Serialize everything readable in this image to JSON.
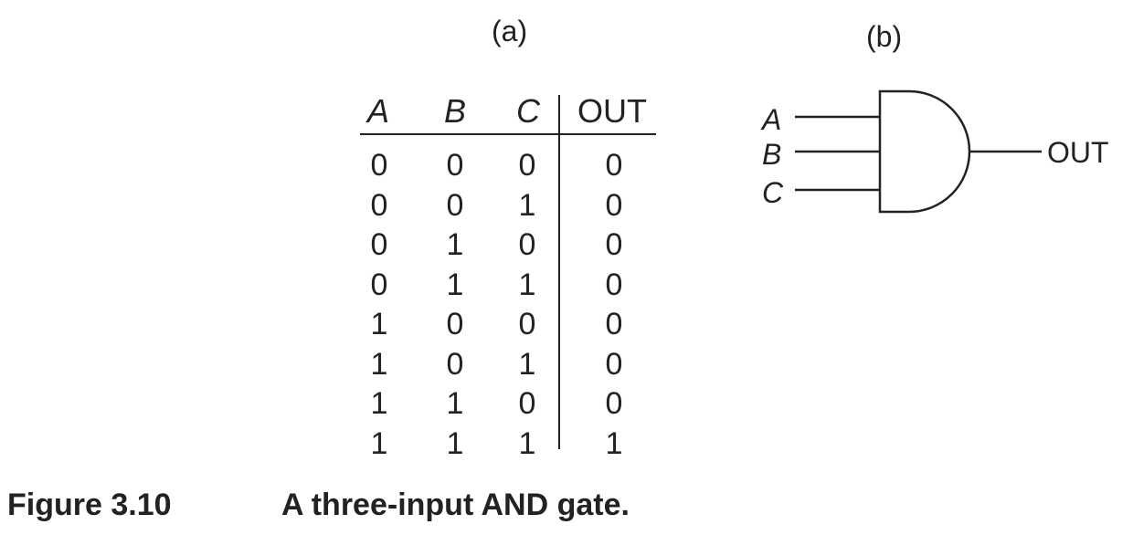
{
  "labels": {
    "a": "(a)",
    "b": "(b)"
  },
  "table": {
    "headers": [
      "A",
      "B",
      "C",
      "OUT"
    ],
    "rows": [
      [
        "0",
        "0",
        "0",
        "0"
      ],
      [
        "0",
        "0",
        "1",
        "0"
      ],
      [
        "0",
        "1",
        "0",
        "0"
      ],
      [
        "0",
        "1",
        "1",
        "0"
      ],
      [
        "1",
        "0",
        "0",
        "0"
      ],
      [
        "1",
        "0",
        "1",
        "0"
      ],
      [
        "1",
        "1",
        "0",
        "0"
      ],
      [
        "1",
        "1",
        "1",
        "1"
      ]
    ]
  },
  "gate": {
    "inputs": [
      "A",
      "B",
      "C"
    ],
    "output": "OUT",
    "type_icon": "and-gate-icon"
  },
  "caption": {
    "number": "Figure 3.10",
    "text": "A three-input AND gate."
  }
}
